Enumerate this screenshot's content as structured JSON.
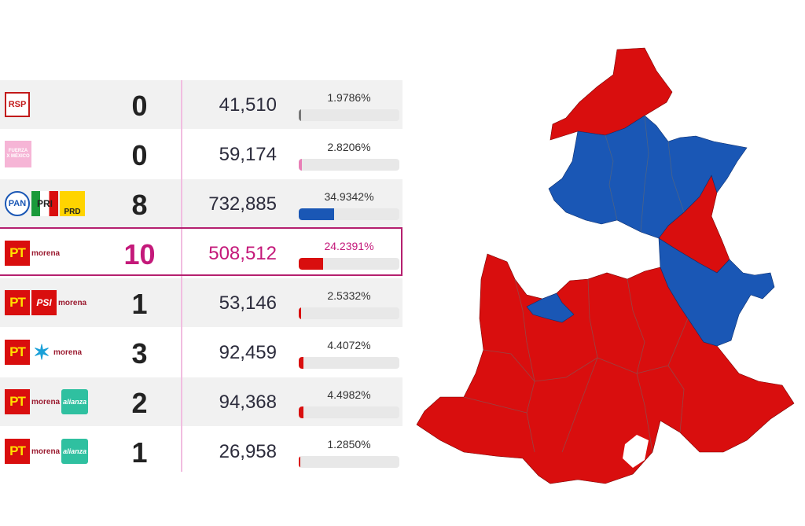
{
  "colors": {
    "red": "#d90e0e",
    "blue": "#1a57b5",
    "pink": "#c4197a",
    "grey": "#e8e8e8"
  },
  "rows": [
    {
      "logos": [
        "RSP"
      ],
      "seats": "0",
      "votes": "41,510",
      "pct": "1.9786%",
      "pct_value": 1.9786,
      "bar_color": "#777777"
    },
    {
      "logos": [
        "FUERZA X MÉXICO"
      ],
      "seats": "0",
      "votes": "59,174",
      "pct": "2.8206%",
      "pct_value": 2.8206,
      "bar_color": "#e87fb6"
    },
    {
      "logos": [
        "PAN",
        "PRI",
        "PRD"
      ],
      "seats": "8",
      "votes": "732,885",
      "pct": "34.9342%",
      "pct_value": 34.9342,
      "bar_color": "#1a57b5"
    },
    {
      "logos": [
        "PT",
        "morena"
      ],
      "seats": "10",
      "votes": "508,512",
      "pct": "24.2391%",
      "pct_value": 24.2391,
      "bar_color": "#d90e0e"
    },
    {
      "logos": [
        "PT",
        "PSI",
        "morena"
      ],
      "seats": "1",
      "votes": "53,146",
      "pct": "2.5332%",
      "pct_value": 2.5332,
      "bar_color": "#d90e0e"
    },
    {
      "logos": [
        "PT",
        "star",
        "morena"
      ],
      "seats": "3",
      "votes": "92,459",
      "pct": "4.4072%",
      "pct_value": 4.4072,
      "bar_color": "#d90e0e"
    },
    {
      "logos": [
        "PT",
        "morena",
        "alianza"
      ],
      "seats": "2",
      "votes": "94,368",
      "pct": "4.4982%",
      "pct_value": 4.4982,
      "bar_color": "#d90e0e"
    },
    {
      "logos": [
        "PT",
        "morena",
        "alianza"
      ],
      "seats": "1",
      "votes": "26,958",
      "pct": "1.2850%",
      "pct_value": 1.285,
      "bar_color": "#d90e0e"
    }
  ],
  "logo_text": {
    "rsp": "RSP",
    "fuerza": "FUERZA\nX MÉXICO",
    "pan": "PAN",
    "pri": "PRI",
    "prd": "PRD",
    "pt": "PT",
    "morena": "morena",
    "psi": "PSI",
    "alianza": "alianza"
  },
  "highlight_row": 3,
  "map": {
    "fill_colors": [
      "#d90e0e",
      "#1a57b5"
    ]
  }
}
